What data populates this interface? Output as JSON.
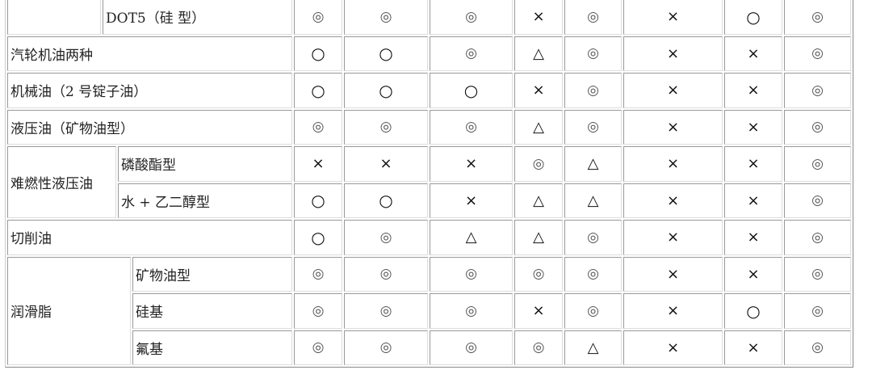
{
  "rows": [
    {
      "group": "",
      "label": "DOT5（硅 型）",
      "values": [
        "◎",
        "◎",
        "◎",
        "×",
        "◎",
        "×",
        "○",
        "◎"
      ]
    },
    {
      "label": "汽轮机油两种",
      "values": [
        "○",
        "○",
        "◎",
        "△",
        "◎",
        "×",
        "×",
        "◎"
      ]
    },
    {
      "label": "机械油（2 号锭子油）",
      "values": [
        "○",
        "○",
        "○",
        "×",
        "◎",
        "×",
        "×",
        "◎"
      ]
    },
    {
      "label": "液压油（矿物油型）",
      "values": [
        "◎",
        "◎",
        "◎",
        "△",
        "◎",
        "×",
        "×",
        "◎"
      ]
    },
    {
      "group": "难燃性液压油",
      "label": "磷酸酯型",
      "values": [
        "×",
        "×",
        "×",
        "◎",
        "△",
        "×",
        "×",
        "◎"
      ]
    },
    {
      "label": "水 + 乙二醇型",
      "values": [
        "○",
        "○",
        "×",
        "△",
        "△",
        "×",
        "×",
        "◎"
      ]
    },
    {
      "label": "切削油",
      "values": [
        "○",
        "◎",
        "△",
        "△",
        "◎",
        "×",
        "×",
        "◎"
      ]
    },
    {
      "group": "润滑脂",
      "label": "矿物油型",
      "values": [
        "◎",
        "◎",
        "◎",
        "◎",
        "◎",
        "×",
        "×",
        "◎"
      ]
    },
    {
      "label": "硅基",
      "values": [
        "◎",
        "◎",
        "◎",
        "×",
        "◎",
        "×",
        "○",
        "◎"
      ]
    },
    {
      "label": "氟基",
      "values": [
        "◎",
        "◎",
        "◎",
        "◎",
        "△",
        "×",
        "×",
        "◎"
      ]
    }
  ],
  "legend_symbols": {
    "◎": "double-circle",
    "○": "circle",
    "△": "triangle",
    "×": "cross"
  }
}
